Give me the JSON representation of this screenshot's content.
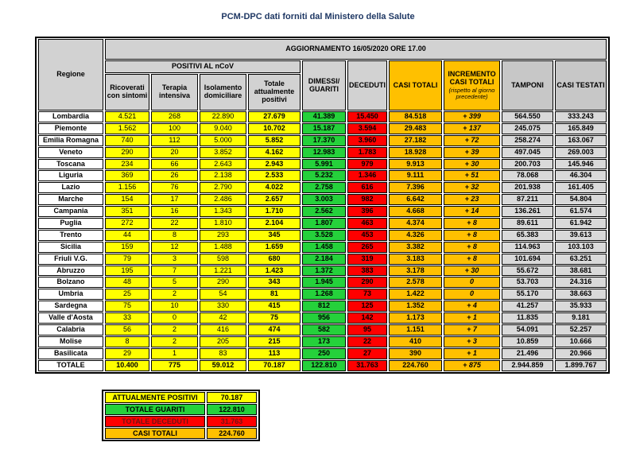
{
  "title": "PCM-DPC dati forniti dal Ministero della Salute",
  "colors": {
    "yellow": "#ffff00",
    "green": "#25d13b",
    "red": "#ff0000",
    "orange": "#ffc000",
    "header_gray": "#d2d2d2",
    "header_gray2": "#c7c7c7",
    "cell_gray": "#d9d9d9",
    "deaths_text": "#701414",
    "title_text": "#1f3864"
  },
  "table": {
    "update_banner": "AGGIORNAMENTO 16/05/2020 ORE 17.00",
    "headers": {
      "regione": "Regione",
      "positivi_group": "POSITIVI AL nCoV",
      "ricoverati": "Ricoverati con sintomi",
      "terapia": "Terapia intensiva",
      "isolamento": "Isolamento domiciliare",
      "totale_positivi": "Totale attualmente positivi",
      "dimessi": "DIMESSI/ GUARITI",
      "deceduti": "DECEDUTI",
      "casi_totali": "CASI TOTALI",
      "incremento": "INCREMENTO CASI TOTALI",
      "incremento_note": "(rispetto al giorno precedente)",
      "tamponi": "TAMPONI",
      "casi_testati": "CASI TESTATI"
    },
    "columns": [
      "ricoverati",
      "terapia",
      "isolamento",
      "totale_positivi",
      "dimessi",
      "deceduti",
      "casi_totali",
      "incremento",
      "tamponi",
      "casi_testati"
    ],
    "rows": [
      {
        "regione": "Lombardia",
        "ricoverati": "4.521",
        "terapia": "268",
        "isolamento": "22.890",
        "totale_positivi": "27.679",
        "dimessi": "41.389",
        "deceduti": "15.450",
        "casi_totali": "84.518",
        "incremento": "+ 399",
        "tamponi": "564.550",
        "casi_testati": "333.243"
      },
      {
        "regione": "Piemonte",
        "ricoverati": "1.562",
        "terapia": "100",
        "isolamento": "9.040",
        "totale_positivi": "10.702",
        "dimessi": "15.187",
        "deceduti": "3.594",
        "casi_totali": "29.483",
        "incremento": "+ 137",
        "tamponi": "245.075",
        "casi_testati": "165.849"
      },
      {
        "regione": "Emilia Romagna",
        "ricoverati": "740",
        "terapia": "112",
        "isolamento": "5.000",
        "totale_positivi": "5.852",
        "dimessi": "17.370",
        "deceduti": "3.960",
        "casi_totali": "27.182",
        "incremento": "+ 72",
        "tamponi": "258.274",
        "casi_testati": "163.067"
      },
      {
        "regione": "Veneto",
        "ricoverati": "290",
        "terapia": "20",
        "isolamento": "3.852",
        "totale_positivi": "4.162",
        "dimessi": "12.983",
        "deceduti": "1.783",
        "casi_totali": "18.928",
        "incremento": "+ 39",
        "tamponi": "497.045",
        "casi_testati": "269.003"
      },
      {
        "regione": "Toscana",
        "ricoverati": "234",
        "terapia": "66",
        "isolamento": "2.643",
        "totale_positivi": "2.943",
        "dimessi": "5.991",
        "deceduti": "979",
        "casi_totali": "9.913",
        "incremento": "+ 30",
        "tamponi": "200.703",
        "casi_testati": "145.946"
      },
      {
        "regione": "Liguria",
        "ricoverati": "369",
        "terapia": "26",
        "isolamento": "2.138",
        "totale_positivi": "2.533",
        "dimessi": "5.232",
        "deceduti": "1.346",
        "casi_totali": "9.111",
        "incremento": "+ 51",
        "tamponi": "78.068",
        "casi_testati": "46.304"
      },
      {
        "regione": "Lazio",
        "ricoverati": "1.156",
        "terapia": "76",
        "isolamento": "2.790",
        "totale_positivi": "4.022",
        "dimessi": "2.758",
        "deceduti": "616",
        "casi_totali": "7.396",
        "incremento": "+ 32",
        "tamponi": "201.938",
        "casi_testati": "161.405"
      },
      {
        "regione": "Marche",
        "ricoverati": "154",
        "terapia": "17",
        "isolamento": "2.486",
        "totale_positivi": "2.657",
        "dimessi": "3.003",
        "deceduti": "982",
        "casi_totali": "6.642",
        "incremento": "+ 23",
        "tamponi": "87.211",
        "casi_testati": "54.804"
      },
      {
        "regione": "Campania",
        "ricoverati": "351",
        "terapia": "16",
        "isolamento": "1.343",
        "totale_positivi": "1.710",
        "dimessi": "2.562",
        "deceduti": "396",
        "casi_totali": "4.668",
        "incremento": "+ 14",
        "tamponi": "136.261",
        "casi_testati": "61.574"
      },
      {
        "regione": "Puglia",
        "ricoverati": "272",
        "terapia": "22",
        "isolamento": "1.810",
        "totale_positivi": "2.104",
        "dimessi": "1.807",
        "deceduti": "463",
        "casi_totali": "4.374",
        "incremento": "+ 8",
        "tamponi": "89.611",
        "casi_testati": "61.942"
      },
      {
        "regione": "Trento",
        "ricoverati": "44",
        "terapia": "8",
        "isolamento": "293",
        "totale_positivi": "345",
        "dimessi": "3.528",
        "deceduti": "453",
        "casi_totali": "4.326",
        "incremento": "+ 8",
        "tamponi": "65.383",
        "casi_testati": "39.613"
      },
      {
        "regione": "Sicilia",
        "ricoverati": "159",
        "terapia": "12",
        "isolamento": "1.488",
        "totale_positivi": "1.659",
        "dimessi": "1.458",
        "deceduti": "265",
        "casi_totali": "3.382",
        "incremento": "+ 8",
        "tamponi": "114.963",
        "casi_testati": "103.103"
      },
      {
        "regione": "Friuli V.G.",
        "ricoverati": "79",
        "terapia": "3",
        "isolamento": "598",
        "totale_positivi": "680",
        "dimessi": "2.184",
        "deceduti": "319",
        "casi_totali": "3.183",
        "incremento": "+ 8",
        "tamponi": "101.694",
        "casi_testati": "63.251"
      },
      {
        "regione": "Abruzzo",
        "ricoverati": "195",
        "terapia": "7",
        "isolamento": "1.221",
        "totale_positivi": "1.423",
        "dimessi": "1.372",
        "deceduti": "383",
        "casi_totali": "3.178",
        "incremento": "+ 30",
        "tamponi": "55.672",
        "casi_testati": "38.681"
      },
      {
        "regione": "Bolzano",
        "ricoverati": "48",
        "terapia": "5",
        "isolamento": "290",
        "totale_positivi": "343",
        "dimessi": "1.945",
        "deceduti": "290",
        "casi_totali": "2.578",
        "incremento": "0",
        "tamponi": "53.703",
        "casi_testati": "24.316"
      },
      {
        "regione": "Umbria",
        "ricoverati": "25",
        "terapia": "2",
        "isolamento": "54",
        "totale_positivi": "81",
        "dimessi": "1.268",
        "deceduti": "73",
        "casi_totali": "1.422",
        "incremento": "0",
        "tamponi": "55.170",
        "casi_testati": "38.663"
      },
      {
        "regione": "Sardegna",
        "ricoverati": "75",
        "terapia": "10",
        "isolamento": "330",
        "totale_positivi": "415",
        "dimessi": "812",
        "deceduti": "125",
        "casi_totali": "1.352",
        "incremento": "+ 4",
        "tamponi": "41.257",
        "casi_testati": "35.933"
      },
      {
        "regione": "Valle d'Aosta",
        "ricoverati": "33",
        "terapia": "0",
        "isolamento": "42",
        "totale_positivi": "75",
        "dimessi": "956",
        "deceduti": "142",
        "casi_totali": "1.173",
        "incremento": "+ 1",
        "tamponi": "11.835",
        "casi_testati": "9.181"
      },
      {
        "regione": "Calabria",
        "ricoverati": "56",
        "terapia": "2",
        "isolamento": "416",
        "totale_positivi": "474",
        "dimessi": "582",
        "deceduti": "95",
        "casi_totali": "1.151",
        "incremento": "+ 7",
        "tamponi": "54.091",
        "casi_testati": "52.257"
      },
      {
        "regione": "Molise",
        "ricoverati": "8",
        "terapia": "2",
        "isolamento": "205",
        "totale_positivi": "215",
        "dimessi": "173",
        "deceduti": "22",
        "casi_totali": "410",
        "incremento": "+ 3",
        "tamponi": "10.859",
        "casi_testati": "10.666"
      },
      {
        "regione": "Basilicata",
        "ricoverati": "29",
        "terapia": "1",
        "isolamento": "83",
        "totale_positivi": "113",
        "dimessi": "250",
        "deceduti": "27",
        "casi_totali": "390",
        "incremento": "+ 1",
        "tamponi": "21.496",
        "casi_testati": "20.966"
      }
    ],
    "total": {
      "regione": "TOTALE",
      "ricoverati": "10.400",
      "terapia": "775",
      "isolamento": "59.012",
      "totale_positivi": "70.187",
      "dimessi": "122.810",
      "deceduti": "31.763",
      "casi_totali": "224.760",
      "incremento": "+ 875",
      "tamponi": "2.944.859",
      "casi_testati": "1.899.767"
    }
  },
  "summary": {
    "rows": [
      {
        "label": "ATTUALMENTE POSITIVI",
        "value": "70.187",
        "color": "yellow"
      },
      {
        "label": "TOTALE GUARITI",
        "value": "122.810",
        "color": "green"
      },
      {
        "label": "TOTALE DECEDUTI",
        "value": "31.763",
        "color": "red"
      },
      {
        "label": "CASI TOTALI",
        "value": "224.760",
        "color": "orange"
      }
    ]
  }
}
